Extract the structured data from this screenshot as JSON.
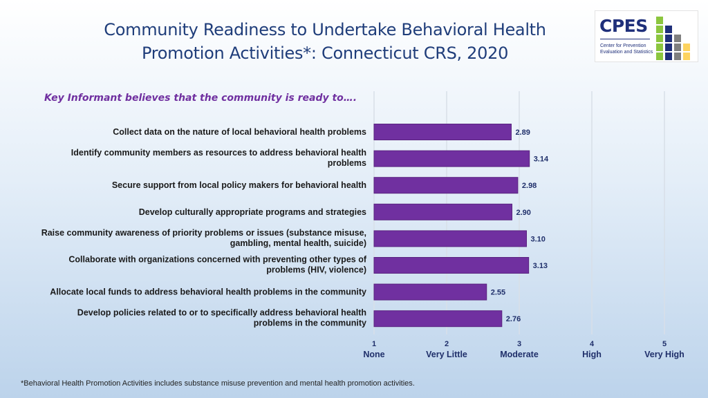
{
  "page": {
    "title_line1": "Community Readiness to Undertake Behavioral Health",
    "title_line2": "Promotion Activities*: Connecticut CRS, 2020",
    "subtitle": "Key Informant believes that the community is ready to….",
    "footnote": "*Behavioral Health Promotion Activities includes substance misuse prevention and mental health promotion activities."
  },
  "logo": {
    "name": "CPES",
    "sub_line1": "Center for Prevention",
    "sub_line2": "Evaluation and Statistics",
    "colors": {
      "green": "#8cc63f",
      "navy": "#1f2f7a",
      "gray": "#7f7f7f",
      "yellow": "#fdd35f"
    }
  },
  "colors": {
    "bar": "#7030a0",
    "bar_border": "#5a2480",
    "label": "#1a1a1a",
    "value": "#1f2f6a",
    "grid": "#d8dfe8"
  },
  "chart_data": {
    "type": "bar",
    "orientation": "horizontal",
    "categories": [
      [
        "Collect data on the nature of local behavioral health problems"
      ],
      [
        "Identify community members as resources to address behavioral health",
        "problems"
      ],
      [
        "Secure support from local policy makers for behavioral health"
      ],
      [
        "Develop culturally appropriate programs and strategies"
      ],
      [
        "Raise community awareness of priority problems or issues (substance misuse,",
        "gambling, mental health, suicide)"
      ],
      [
        "Collaborate with organizations concerned with preventing other types of",
        "problems (HIV, violence)"
      ],
      [
        "Allocate local funds to address behavioral health problems in the community"
      ],
      [
        "Develop policies related to or to specifically address behavioral health",
        "problems in the community"
      ]
    ],
    "values": [
      2.89,
      3.14,
      2.98,
      2.9,
      3.1,
      3.13,
      2.55,
      2.76
    ],
    "value_labels": [
      "2.89",
      "3.14",
      "2.98",
      "2.90",
      "3.10",
      "3.13",
      "2.55",
      "2.76"
    ],
    "xlim": [
      1,
      5
    ],
    "xticks": [
      {
        "value": 1,
        "num": "1",
        "label": "None"
      },
      {
        "value": 2,
        "num": "2",
        "label": "Very Little"
      },
      {
        "value": 3,
        "num": "3",
        "label": "Moderate"
      },
      {
        "value": 4,
        "num": "4",
        "label": "High"
      },
      {
        "value": 5,
        "num": "5",
        "label": "Very High"
      }
    ],
    "grid": true,
    "legend": "none"
  }
}
